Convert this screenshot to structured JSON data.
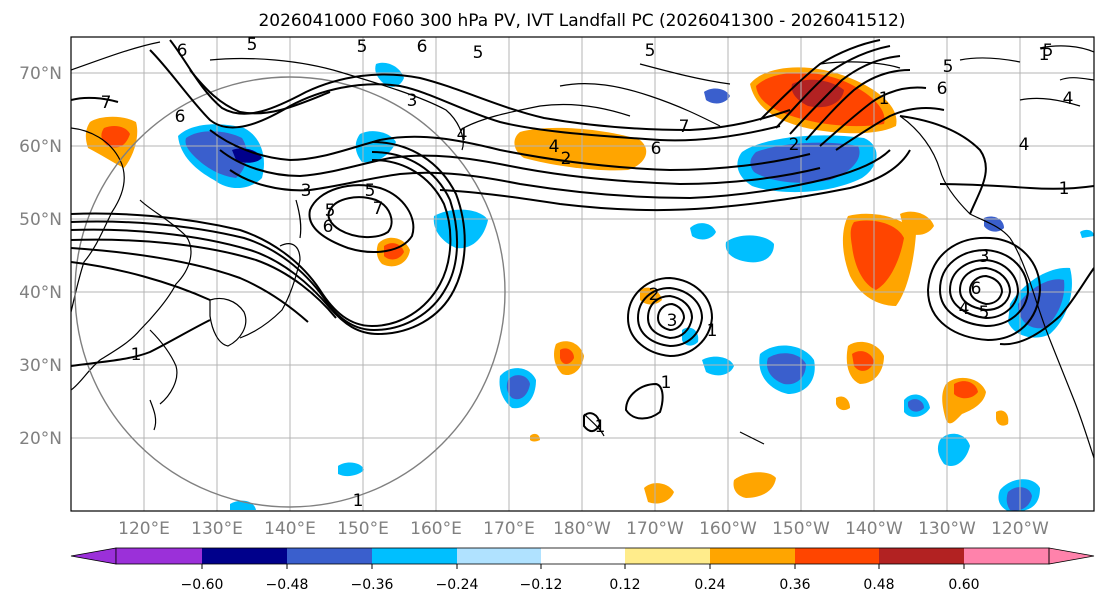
{
  "title": "2026041000 F060 300 hPa PV, IVT Landfall PC (2026041300 - 2026041512)",
  "lat_labels": [
    "70°N",
    "60°N",
    "50°N",
    "40°N",
    "30°N",
    "20°N"
  ],
  "lon_labels": [
    "120°E",
    "130°E",
    "140°E",
    "150°E",
    "160°E",
    "170°E",
    "180°W",
    "170°W",
    "160°W",
    "150°W",
    "140°W",
    "130°W",
    "120°W"
  ],
  "colorbar": {
    "tick_labels": [
      "−0.60",
      "−0.48",
      "−0.36",
      "−0.24",
      "−0.12",
      "0.12",
      "0.24",
      "0.36",
      "0.48",
      "0.60"
    ],
    "colors": [
      "#9b30d9",
      "#00008b",
      "#3a5fcd",
      "#00bfff",
      "#b0e2ff",
      "#ffffff",
      "#ffec8b",
      "#ffa500",
      "#ff4500",
      "#b22222",
      "#ff82ab"
    ]
  },
  "contour_labels": {
    "top": [
      "6",
      "5",
      "5",
      "6",
      "5",
      "5",
      "5",
      "5",
      "6",
      "6",
      "3"
    ],
    "west": [
      "7",
      "1",
      "1"
    ],
    "japan_low": [
      "5",
      "7",
      "6",
      "4",
      "3"
    ],
    "arc": [
      "4",
      "2",
      "6",
      "7",
      "4",
      "1"
    ],
    "central_low": [
      "2",
      "3",
      "1"
    ],
    "east_low": [
      "3",
      "6",
      "4",
      "5",
      "1",
      "1",
      "4"
    ],
    "misc": [
      "1",
      "1",
      "2",
      "5"
    ]
  }
}
